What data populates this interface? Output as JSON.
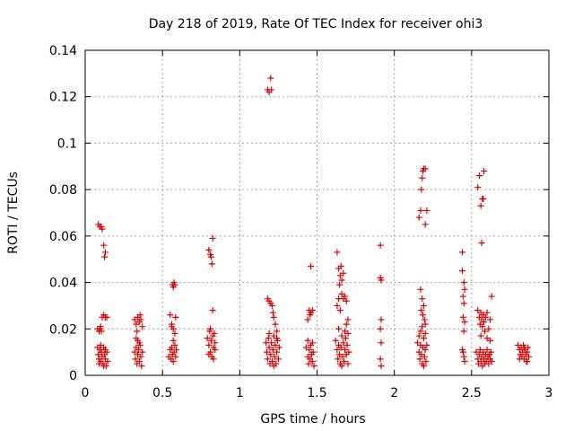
{
  "chart_data": {
    "type": "scatter",
    "title": "Day 218 of 2019, Rate Of TEC Index for receiver ohi3",
    "xlabel": "GPS time / hours",
    "ylabel": "ROTI / TECUs",
    "xlim": [
      0,
      3
    ],
    "ylim": [
      0,
      0.14
    ],
    "grid": true,
    "legend": "none",
    "marker_color": "#e00000",
    "x_ticks": [
      {
        "value": 0,
        "label": "0"
      },
      {
        "value": 0.5,
        "label": "0.5"
      },
      {
        "value": 1,
        "label": "1"
      },
      {
        "value": 1.5,
        "label": "1.5"
      },
      {
        "value": 2,
        "label": "2"
      },
      {
        "value": 2.5,
        "label": "2.5"
      },
      {
        "value": 3,
        "label": "3"
      }
    ],
    "y_ticks": [
      {
        "value": 0,
        "label": "0"
      },
      {
        "value": 0.02,
        "label": "0.02"
      },
      {
        "value": 0.04,
        "label": "0.04"
      },
      {
        "value": 0.06,
        "label": "0.06"
      },
      {
        "value": 0.08,
        "label": "0.08"
      },
      {
        "value": 0.1,
        "label": "0.1"
      },
      {
        "value": 0.12,
        "label": "0.12"
      },
      {
        "value": 0.14,
        "label": "0.14"
      }
    ],
    "series": [
      {
        "name": "ROTI",
        "points": [
          [
            0.085,
            0.065
          ],
          [
            0.095,
            0.064
          ],
          [
            0.105,
            0.064
          ],
          [
            0.11,
            0.063
          ],
          [
            0.12,
            0.056
          ],
          [
            0.125,
            0.051
          ],
          [
            0.13,
            0.053
          ],
          [
            0.08,
            0.02
          ],
          [
            0.09,
            0.019
          ],
          [
            0.095,
            0.02
          ],
          [
            0.1,
            0.021
          ],
          [
            0.105,
            0.019
          ],
          [
            0.11,
            0.025
          ],
          [
            0.12,
            0.026
          ],
          [
            0.13,
            0.025
          ],
          [
            0.14,
            0.025
          ],
          [
            0.08,
            0.012
          ],
          [
            0.085,
            0.009
          ],
          [
            0.09,
            0.007
          ],
          [
            0.095,
            0.011
          ],
          [
            0.1,
            0.006
          ],
          [
            0.105,
            0.01
          ],
          [
            0.11,
            0.008
          ],
          [
            0.115,
            0.005
          ],
          [
            0.12,
            0.012
          ],
          [
            0.125,
            0.009
          ],
          [
            0.13,
            0.007
          ],
          [
            0.135,
            0.004
          ],
          [
            0.14,
            0.01
          ],
          [
            0.145,
            0.006
          ],
          [
            0.09,
            0.005
          ],
          [
            0.1,
            0.013
          ],
          [
            0.12,
            0.004
          ],
          [
            0.13,
            0.011
          ],
          [
            0.32,
            0.024
          ],
          [
            0.33,
            0.022
          ],
          [
            0.34,
            0.025
          ],
          [
            0.35,
            0.023
          ],
          [
            0.36,
            0.024
          ],
          [
            0.37,
            0.021
          ],
          [
            0.335,
            0.019
          ],
          [
            0.355,
            0.026
          ],
          [
            0.32,
            0.01
          ],
          [
            0.325,
            0.007
          ],
          [
            0.33,
            0.012
          ],
          [
            0.335,
            0.005
          ],
          [
            0.34,
            0.009
          ],
          [
            0.345,
            0.011
          ],
          [
            0.35,
            0.006
          ],
          [
            0.355,
            0.013
          ],
          [
            0.36,
            0.008
          ],
          [
            0.365,
            0.004
          ],
          [
            0.37,
            0.01
          ],
          [
            0.34,
            0.015
          ],
          [
            0.35,
            0.014
          ],
          [
            0.33,
            0.016
          ],
          [
            0.55,
            0.026
          ],
          [
            0.56,
            0.022
          ],
          [
            0.565,
            0.039
          ],
          [
            0.57,
            0.038
          ],
          [
            0.575,
            0.04
          ],
          [
            0.58,
            0.039
          ],
          [
            0.585,
            0.025
          ],
          [
            0.57,
            0.02
          ],
          [
            0.58,
            0.018
          ],
          [
            0.56,
            0.021
          ],
          [
            0.54,
            0.008
          ],
          [
            0.55,
            0.011
          ],
          [
            0.555,
            0.007
          ],
          [
            0.56,
            0.012
          ],
          [
            0.565,
            0.009
          ],
          [
            0.57,
            0.006
          ],
          [
            0.575,
            0.01
          ],
          [
            0.58,
            0.013
          ],
          [
            0.585,
            0.008
          ],
          [
            0.59,
            0.011
          ],
          [
            0.57,
            0.015
          ],
          [
            0.8,
            0.054
          ],
          [
            0.81,
            0.052
          ],
          [
            0.815,
            0.051
          ],
          [
            0.825,
            0.059
          ],
          [
            0.82,
            0.048
          ],
          [
            0.825,
            0.028
          ],
          [
            0.79,
            0.016
          ],
          [
            0.8,
            0.013
          ],
          [
            0.805,
            0.019
          ],
          [
            0.81,
            0.01
          ],
          [
            0.815,
            0.015
          ],
          [
            0.82,
            0.008
          ],
          [
            0.825,
            0.017
          ],
          [
            0.83,
            0.012
          ],
          [
            0.835,
            0.018
          ],
          [
            0.84,
            0.014
          ],
          [
            0.8,
            0.009
          ],
          [
            0.83,
            0.007
          ],
          [
            0.81,
            0.02
          ],
          [
            0.84,
            0.011
          ],
          [
            1.18,
            0.123
          ],
          [
            1.19,
            0.122
          ],
          [
            1.2,
            0.128
          ],
          [
            1.205,
            0.123
          ],
          [
            1.18,
            0.033
          ],
          [
            1.19,
            0.032
          ],
          [
            1.2,
            0.031
          ],
          [
            1.21,
            0.03
          ],
          [
            1.22,
            0.025
          ],
          [
            1.23,
            0.022
          ],
          [
            1.24,
            0.019
          ],
          [
            1.215,
            0.027
          ],
          [
            1.17,
            0.014
          ],
          [
            1.175,
            0.01
          ],
          [
            1.18,
            0.007
          ],
          [
            1.185,
            0.016
          ],
          [
            1.19,
            0.012
          ],
          [
            1.195,
            0.005
          ],
          [
            1.2,
            0.009
          ],
          [
            1.205,
            0.014
          ],
          [
            1.21,
            0.006
          ],
          [
            1.215,
            0.011
          ],
          [
            1.22,
            0.017
          ],
          [
            1.225,
            0.008
          ],
          [
            1.23,
            0.013
          ],
          [
            1.235,
            0.005
          ],
          [
            1.24,
            0.01
          ],
          [
            1.245,
            0.015
          ],
          [
            1.25,
            0.007
          ],
          [
            1.255,
            0.012
          ],
          [
            1.19,
            0.018
          ],
          [
            1.22,
            0.004
          ],
          [
            1.24,
            0.016
          ],
          [
            1.46,
            0.047
          ],
          [
            1.45,
            0.028
          ],
          [
            1.46,
            0.027
          ],
          [
            1.47,
            0.028
          ],
          [
            1.44,
            0.024
          ],
          [
            1.455,
            0.026
          ],
          [
            1.43,
            0.012
          ],
          [
            1.44,
            0.008
          ],
          [
            1.445,
            0.005
          ],
          [
            1.45,
            0.011
          ],
          [
            1.455,
            0.007
          ],
          [
            1.46,
            0.013
          ],
          [
            1.465,
            0.009
          ],
          [
            1.47,
            0.006
          ],
          [
            1.475,
            0.01
          ],
          [
            1.48,
            0.004
          ],
          [
            1.44,
            0.015
          ],
          [
            1.47,
            0.014
          ],
          [
            1.63,
            0.053
          ],
          [
            1.64,
            0.046
          ],
          [
            1.65,
            0.043
          ],
          [
            1.66,
            0.041
          ],
          [
            1.67,
            0.044
          ],
          [
            1.645,
            0.039
          ],
          [
            1.655,
            0.047
          ],
          [
            1.66,
            0.035
          ],
          [
            1.67,
            0.033
          ],
          [
            1.68,
            0.034
          ],
          [
            1.69,
            0.032
          ],
          [
            1.7,
            0.024
          ],
          [
            1.64,
            0.033
          ],
          [
            1.63,
            0.03
          ],
          [
            1.65,
            0.028
          ],
          [
            1.62,
            0.015
          ],
          [
            1.63,
            0.011
          ],
          [
            1.635,
            0.007
          ],
          [
            1.64,
            0.013
          ],
          [
            1.645,
            0.009
          ],
          [
            1.65,
            0.005
          ],
          [
            1.655,
            0.012
          ],
          [
            1.66,
            0.017
          ],
          [
            1.665,
            0.008
          ],
          [
            1.67,
            0.014
          ],
          [
            1.675,
            0.006
          ],
          [
            1.68,
            0.011
          ],
          [
            1.685,
            0.016
          ],
          [
            1.69,
            0.009
          ],
          [
            1.695,
            0.013
          ],
          [
            1.7,
            0.005
          ],
          [
            1.705,
            0.01
          ],
          [
            1.64,
            0.02
          ],
          [
            1.68,
            0.019
          ],
          [
            1.66,
            0.004
          ],
          [
            1.7,
            0.018
          ],
          [
            1.69,
            0.022
          ],
          [
            1.91,
            0.056
          ],
          [
            1.91,
            0.042
          ],
          [
            1.915,
            0.041
          ],
          [
            1.915,
            0.024
          ],
          [
            1.91,
            0.02
          ],
          [
            1.915,
            0.014
          ],
          [
            1.91,
            0.007
          ],
          [
            1.915,
            0.004
          ],
          [
            2.16,
            0.068
          ],
          [
            2.17,
            0.071
          ],
          [
            2.175,
            0.08
          ],
          [
            2.18,
            0.085
          ],
          [
            2.185,
            0.088
          ],
          [
            2.19,
            0.089
          ],
          [
            2.2,
            0.089
          ],
          [
            2.2,
            0.065
          ],
          [
            2.21,
            0.071
          ],
          [
            2.17,
            0.037
          ],
          [
            2.18,
            0.033
          ],
          [
            2.19,
            0.03
          ],
          [
            2.175,
            0.028
          ],
          [
            2.185,
            0.026
          ],
          [
            2.195,
            0.024
          ],
          [
            2.2,
            0.022
          ],
          [
            2.17,
            0.019
          ],
          [
            2.18,
            0.021
          ],
          [
            2.15,
            0.014
          ],
          [
            2.16,
            0.01
          ],
          [
            2.165,
            0.007
          ],
          [
            2.17,
            0.013
          ],
          [
            2.175,
            0.009
          ],
          [
            2.18,
            0.005
          ],
          [
            2.185,
            0.012
          ],
          [
            2.19,
            0.016
          ],
          [
            2.195,
            0.008
          ],
          [
            2.2,
            0.011
          ],
          [
            2.205,
            0.006
          ],
          [
            2.21,
            0.013
          ],
          [
            2.16,
            0.017
          ],
          [
            2.2,
            0.018
          ],
          [
            2.19,
            0.004
          ],
          [
            2.44,
            0.053
          ],
          [
            2.44,
            0.045
          ],
          [
            2.45,
            0.04
          ],
          [
            2.455,
            0.037
          ],
          [
            2.445,
            0.034
          ],
          [
            2.45,
            0.031
          ],
          [
            2.445,
            0.025
          ],
          [
            2.455,
            0.023
          ],
          [
            2.45,
            0.019
          ],
          [
            2.44,
            0.011
          ],
          [
            2.45,
            0.008
          ],
          [
            2.455,
            0.006
          ],
          [
            2.445,
            0.01
          ],
          [
            2.54,
            0.081
          ],
          [
            2.55,
            0.086
          ],
          [
            2.56,
            0.073
          ],
          [
            2.57,
            0.076
          ],
          [
            2.575,
            0.076
          ],
          [
            2.58,
            0.088
          ],
          [
            2.565,
            0.057
          ],
          [
            2.54,
            0.028
          ],
          [
            2.55,
            0.025
          ],
          [
            2.555,
            0.022
          ],
          [
            2.56,
            0.027
          ],
          [
            2.565,
            0.024
          ],
          [
            2.57,
            0.021
          ],
          [
            2.575,
            0.026
          ],
          [
            2.58,
            0.023
          ],
          [
            2.585,
            0.019
          ],
          [
            2.59,
            0.025
          ],
          [
            2.6,
            0.027
          ],
          [
            2.61,
            0.02
          ],
          [
            2.62,
            0.024
          ],
          [
            2.63,
            0.034
          ],
          [
            2.6,
            0.016
          ],
          [
            2.56,
            0.017
          ],
          [
            2.62,
            0.015
          ],
          [
            2.53,
            0.01
          ],
          [
            2.54,
            0.007
          ],
          [
            2.545,
            0.005
          ],
          [
            2.55,
            0.009
          ],
          [
            2.555,
            0.011
          ],
          [
            2.56,
            0.006
          ],
          [
            2.565,
            0.008
          ],
          [
            2.57,
            0.004
          ],
          [
            2.575,
            0.01
          ],
          [
            2.58,
            0.007
          ],
          [
            2.585,
            0.005
          ],
          [
            2.59,
            0.009
          ],
          [
            2.595,
            0.006
          ],
          [
            2.6,
            0.011
          ],
          [
            2.605,
            0.008
          ],
          [
            2.61,
            0.005
          ],
          [
            2.615,
            0.009
          ],
          [
            2.62,
            0.007
          ],
          [
            2.625,
            0.01
          ],
          [
            2.63,
            0.006
          ],
          [
            2.8,
            0.013
          ],
          [
            2.81,
            0.011
          ],
          [
            2.815,
            0.009
          ],
          [
            2.82,
            0.012
          ],
          [
            2.825,
            0.008
          ],
          [
            2.83,
            0.01
          ],
          [
            2.835,
            0.013
          ],
          [
            2.84,
            0.007
          ],
          [
            2.845,
            0.011
          ],
          [
            2.85,
            0.009
          ],
          [
            2.855,
            0.006
          ],
          [
            2.86,
            0.01
          ],
          [
            2.865,
            0.012
          ],
          [
            2.87,
            0.008
          ],
          [
            2.81,
            0.007
          ],
          [
            2.84,
            0.012
          ],
          [
            2.86,
            0.006
          ]
        ]
      }
    ]
  }
}
